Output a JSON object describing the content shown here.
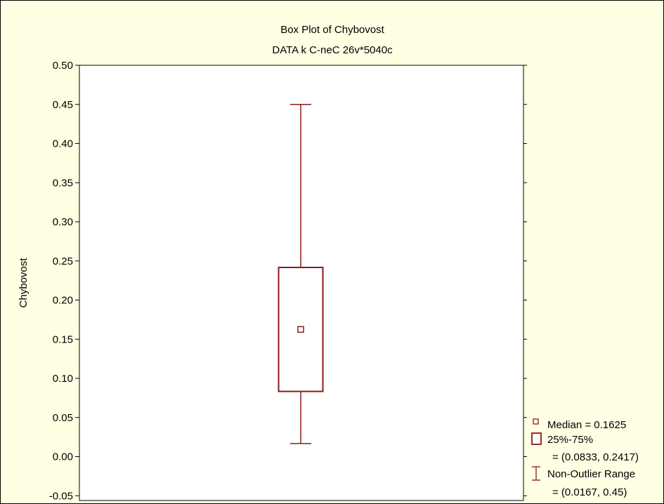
{
  "chart_data": {
    "type": "box",
    "title": "Box Plot of Chybovost",
    "subtitle": "DATA k C-neC 26v*5040c",
    "xlabel": "",
    "ylabel": "Chybovost",
    "ylim": [
      -0.05,
      0.5
    ],
    "yticks": [
      "-0.05",
      "0.00",
      "0.05",
      "0.10",
      "0.15",
      "0.20",
      "0.25",
      "0.30",
      "0.35",
      "0.40",
      "0.45",
      "0.50"
    ],
    "box": {
      "median": 0.1625,
      "q1": 0.0833,
      "q3": 0.2417,
      "whisker_low": 0.0167,
      "whisker_high": 0.45
    },
    "legend": {
      "position": "bottom-right",
      "median_label": "Median = 0.1625",
      "box_label": "25%-75%",
      "box_values": "= (0.0833, 0.2417)",
      "range_label": "Non-Outlier Range",
      "range_values": "= (0.0167, 0.45)"
    },
    "colors": {
      "background": "#FFFFE3",
      "plot_area": "#FFFFFF",
      "box": "#8B1A1A",
      "axis": "#000000"
    }
  }
}
